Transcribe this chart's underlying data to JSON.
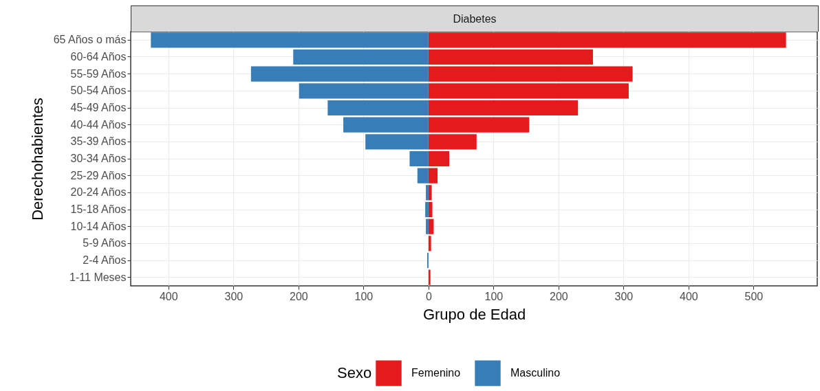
{
  "chart_data": {
    "type": "bar",
    "stacked": true,
    "orientation": "horizontal",
    "title": "Diabetes",
    "xlabel": "Grupo de Edad",
    "ylabel": "Derechohabientes",
    "legend_title": "Sexo",
    "legend": "bottom",
    "grid": true,
    "categories": [
      "65 Años o más",
      "60-64 Años",
      "55-59 Años",
      "50-54 Años",
      "45-49 Años",
      "40-44 Años",
      "35-39 Años",
      "30-34 Años",
      "25-29 Años",
      "20-24 Años",
      "15-18 Años",
      "10-14 Años",
      "5-9 Años",
      "2-4 Años",
      "1-11 Meses"
    ],
    "series": [
      {
        "name": "Femenino",
        "color": "#e41a1c",
        "values": [
          550,
          253,
          314,
          308,
          230,
          155,
          74,
          32,
          14,
          5,
          6,
          8,
          4,
          null,
          3
        ]
      },
      {
        "name": "Masculino",
        "color": "#377eb8",
        "values": [
          -427,
          -208,
          -273,
          -199,
          -155,
          -131,
          -97,
          -29,
          -17,
          -4,
          -5,
          -4,
          null,
          -2,
          null
        ]
      }
    ],
    "xlim": [
      -458,
      598
    ],
    "xticks": [
      {
        "value": -400,
        "label": "400"
      },
      {
        "value": -300,
        "label": "300"
      },
      {
        "value": -200,
        "label": "200"
      },
      {
        "value": -100,
        "label": "100"
      },
      0,
      100,
      200,
      300,
      400,
      500
    ]
  }
}
